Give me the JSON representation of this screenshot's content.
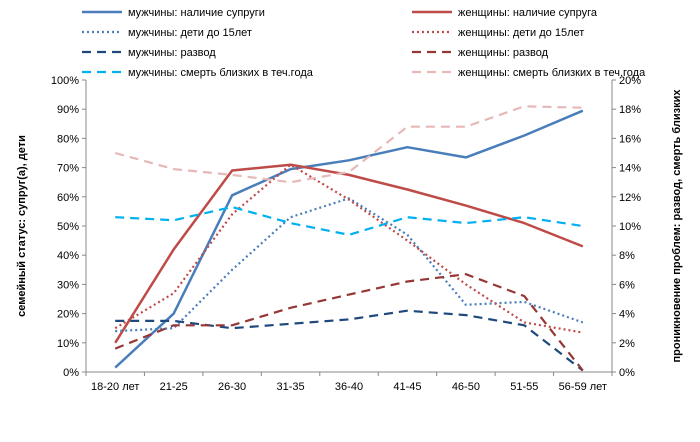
{
  "chart_data": {
    "type": "line",
    "categories": [
      "18-20 лет",
      "21-25",
      "26-30",
      "31-35",
      "36-40",
      "41-45",
      "46-50",
      "51-55",
      "56-59 лет"
    ],
    "ylabel": "семейный статус: супруг(а), дети",
    "y2label": "проникновение проблем: развод, смерть близких",
    "ylim": [
      0,
      100
    ],
    "y2lim": [
      0,
      20
    ],
    "yticks": [
      "0%",
      "10%",
      "20%",
      "30%",
      "40%",
      "50%",
      "60%",
      "70%",
      "80%",
      "90%",
      "100%"
    ],
    "y2ticks": [
      "0%",
      "2%",
      "4%",
      "6%",
      "8%",
      "10%",
      "12%",
      "14%",
      "16%",
      "18%",
      "20%"
    ],
    "grid": false,
    "legend_position": "top",
    "series": [
      {
        "name": "мужчины: наличие супруги",
        "axis": "left",
        "color": "#4A7EBB",
        "style": "solid",
        "values": [
          1.5,
          20,
          60.5,
          69.5,
          72.5,
          77,
          73.5,
          81,
          89.5
        ]
      },
      {
        "name": "женщины: наличие супруга",
        "axis": "left",
        "color": "#BE4B48",
        "style": "solid",
        "values": [
          10,
          42,
          69,
          71,
          67.5,
          62.5,
          57,
          51,
          43
        ]
      },
      {
        "name": "мужчины: дети до 15лет",
        "axis": "left",
        "color": "#4A7EBB",
        "style": "dotted",
        "values": [
          14,
          15,
          35,
          53,
          59.5,
          47,
          23,
          24,
          17
        ]
      },
      {
        "name": "женщины: дети до 15лет",
        "axis": "left",
        "color": "#BE4B48",
        "style": "dotted",
        "values": [
          15,
          27,
          54,
          71,
          59,
          45,
          30,
          17,
          13.5
        ]
      },
      {
        "name": "мужчины: развод",
        "axis": "right",
        "color": "#1F497D",
        "style": "dashed",
        "values": [
          3.5,
          3.5,
          3,
          3.3,
          3.6,
          4.2,
          3.9,
          3.2,
          0.1
        ]
      },
      {
        "name": "женщины: развод",
        "axis": "right",
        "color": "#953735",
        "style": "dashed",
        "values": [
          1.6,
          3.2,
          3.2,
          4.4,
          5.3,
          6.2,
          6.7,
          5.2,
          0.1
        ]
      },
      {
        "name": "мужчины: смерть близких в теч.года",
        "axis": "right",
        "color": "#00B0F0",
        "style": "dashed",
        "values": [
          10.6,
          10.4,
          11.3,
          10.2,
          9.4,
          10.6,
          10.2,
          10.6,
          10
        ]
      },
      {
        "name": "женщины: смерть близких в теч.года",
        "axis": "right",
        "color": "#E6B9B8",
        "style": "dashed",
        "values": [
          15,
          13.9,
          13.5,
          13,
          13.7,
          16.8,
          16.8,
          18.2,
          18.1
        ]
      }
    ]
  }
}
